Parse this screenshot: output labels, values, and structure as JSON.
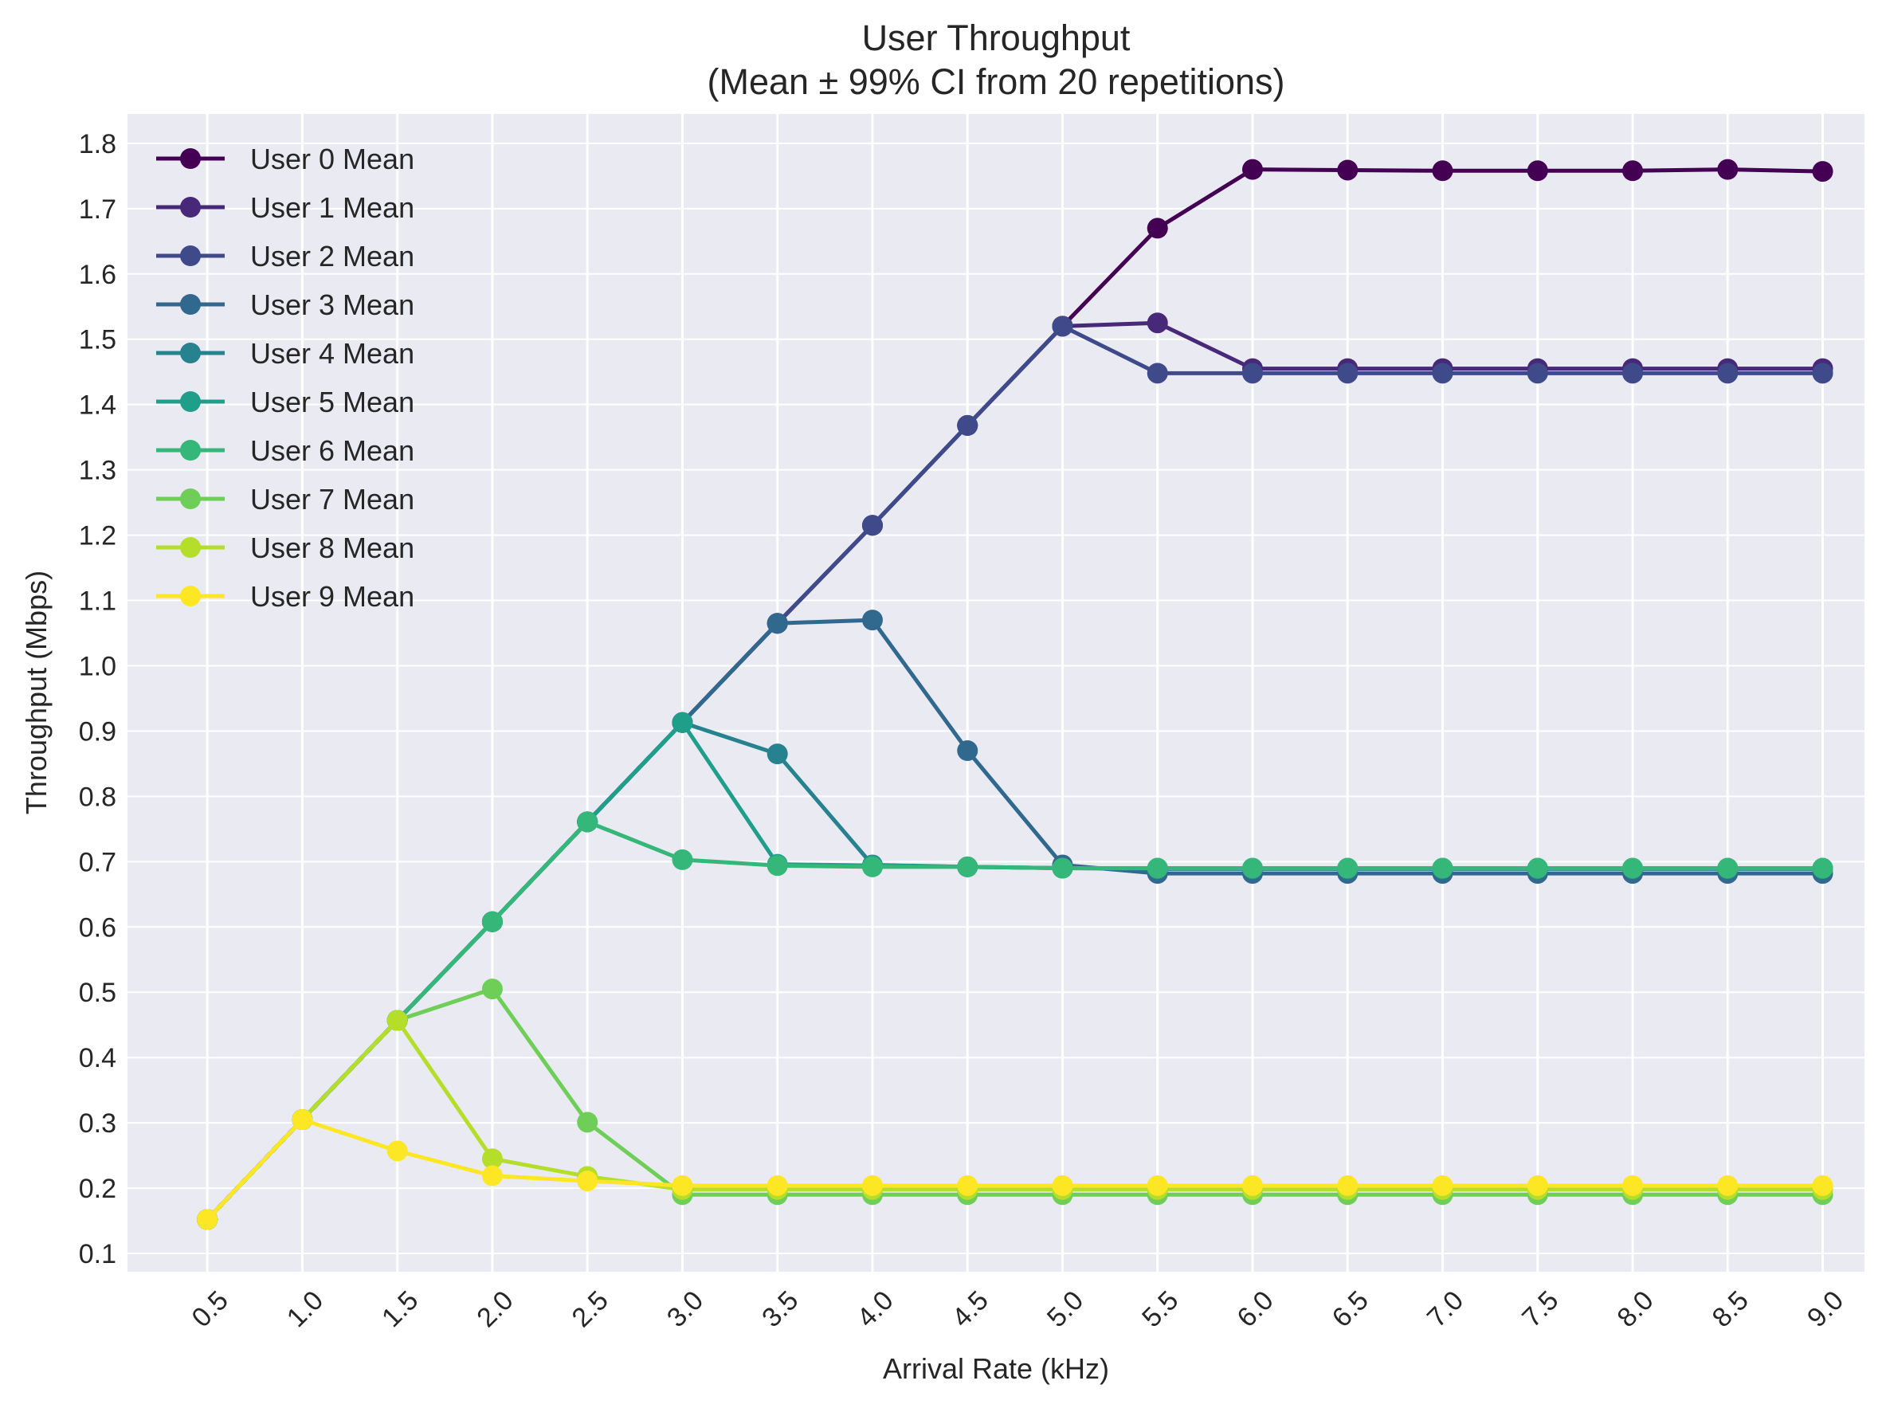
{
  "chart_data": {
    "type": "line",
    "title": "User Throughput",
    "subtitle": "(Mean ± 99% CI from 20 repetitions)",
    "xlabel": "Arrival Rate (kHz)",
    "ylabel": "Throughput (Mbps)",
    "x": [
      0.5,
      1.0,
      1.5,
      2.0,
      2.5,
      3.0,
      3.5,
      4.0,
      4.5,
      5.0,
      5.5,
      6.0,
      6.5,
      7.0,
      7.5,
      8.0,
      8.5,
      9.0
    ],
    "x_tick_labels": [
      "0.5",
      "1.0",
      "1.5",
      "2.0",
      "2.5",
      "3.0",
      "3.5",
      "4.0",
      "4.5",
      "5.0",
      "5.5",
      "6.0",
      "6.5",
      "7.0",
      "7.5",
      "8.0",
      "8.5",
      "9.0"
    ],
    "y_ticks": [
      0.1,
      0.2,
      0.3,
      0.4,
      0.5,
      0.6,
      0.7,
      0.8,
      0.9,
      1.0,
      1.1,
      1.2,
      1.3,
      1.4,
      1.5,
      1.6,
      1.7,
      1.8
    ],
    "y_tick_labels": [
      "0.1",
      "0.2",
      "0.3",
      "0.4",
      "0.5",
      "0.6",
      "0.7",
      "0.8",
      "0.9",
      "1.0",
      "1.1",
      "1.2",
      "1.3",
      "1.4",
      "1.5",
      "1.6",
      "1.7",
      "1.8"
    ],
    "xlim": [
      0.08,
      9.22
    ],
    "ylim": [
      0.072,
      1.845
    ],
    "grid": true,
    "legend_position": "top-left",
    "background_color": "#eaeaf2",
    "grid_color": "#ffffff",
    "series": [
      {
        "name": "User 0 Mean",
        "color": "#440154",
        "values": [
          0.152,
          0.305,
          0.457,
          0.608,
          0.761,
          0.913,
          1.065,
          1.215,
          1.368,
          1.52,
          1.67,
          1.76,
          1.759,
          1.758,
          1.758,
          1.758,
          1.76,
          1.757
        ]
      },
      {
        "name": "User 1 Mean",
        "color": "#482878",
        "values": [
          0.152,
          0.305,
          0.457,
          0.608,
          0.761,
          0.913,
          1.065,
          1.215,
          1.368,
          1.52,
          1.525,
          1.455,
          1.455,
          1.455,
          1.455,
          1.455,
          1.455,
          1.455
        ]
      },
      {
        "name": "User 2 Mean",
        "color": "#3e4a89",
        "values": [
          0.152,
          0.305,
          0.457,
          0.608,
          0.761,
          0.913,
          1.065,
          1.215,
          1.368,
          1.52,
          1.448,
          1.448,
          1.448,
          1.448,
          1.448,
          1.448,
          1.448,
          1.448
        ]
      },
      {
        "name": "User 3 Mean",
        "color": "#31688e",
        "values": [
          0.152,
          0.305,
          0.457,
          0.608,
          0.761,
          0.913,
          1.065,
          1.07,
          0.87,
          0.695,
          0.682,
          0.682,
          0.682,
          0.682,
          0.682,
          0.682,
          0.682,
          0.682
        ]
      },
      {
        "name": "User 4 Mean",
        "color": "#26828e",
        "values": [
          0.152,
          0.305,
          0.457,
          0.608,
          0.761,
          0.913,
          0.865,
          0.695,
          0.692,
          0.69,
          0.689,
          0.689,
          0.689,
          0.689,
          0.689,
          0.689,
          0.689,
          0.689
        ]
      },
      {
        "name": "User 5 Mean",
        "color": "#1f9e89",
        "values": [
          0.152,
          0.305,
          0.457,
          0.608,
          0.761,
          0.913,
          0.696,
          0.694,
          0.692,
          0.69,
          0.69,
          0.69,
          0.69,
          0.69,
          0.69,
          0.69,
          0.69,
          0.69
        ]
      },
      {
        "name": "User 6 Mean",
        "color": "#35b779",
        "values": [
          0.152,
          0.305,
          0.457,
          0.608,
          0.761,
          0.703,
          0.694,
          0.692,
          0.692,
          0.69,
          0.69,
          0.69,
          0.69,
          0.69,
          0.69,
          0.69,
          0.69,
          0.69
        ]
      },
      {
        "name": "User 7 Mean",
        "color": "#6ece58",
        "values": [
          0.152,
          0.305,
          0.457,
          0.505,
          0.301,
          0.19,
          0.19,
          0.19,
          0.19,
          0.19,
          0.19,
          0.19,
          0.19,
          0.19,
          0.19,
          0.19,
          0.19,
          0.19
        ]
      },
      {
        "name": "User 8 Mean",
        "color": "#b5de2b",
        "values": [
          0.152,
          0.305,
          0.457,
          0.245,
          0.218,
          0.198,
          0.198,
          0.198,
          0.198,
          0.198,
          0.198,
          0.198,
          0.198,
          0.198,
          0.198,
          0.198,
          0.198,
          0.198
        ]
      },
      {
        "name": "User 9 Mean",
        "color": "#fde725",
        "values": [
          0.152,
          0.305,
          0.257,
          0.219,
          0.211,
          0.204,
          0.204,
          0.204,
          0.204,
          0.204,
          0.204,
          0.204,
          0.204,
          0.204,
          0.204,
          0.204,
          0.204,
          0.204
        ]
      }
    ]
  }
}
